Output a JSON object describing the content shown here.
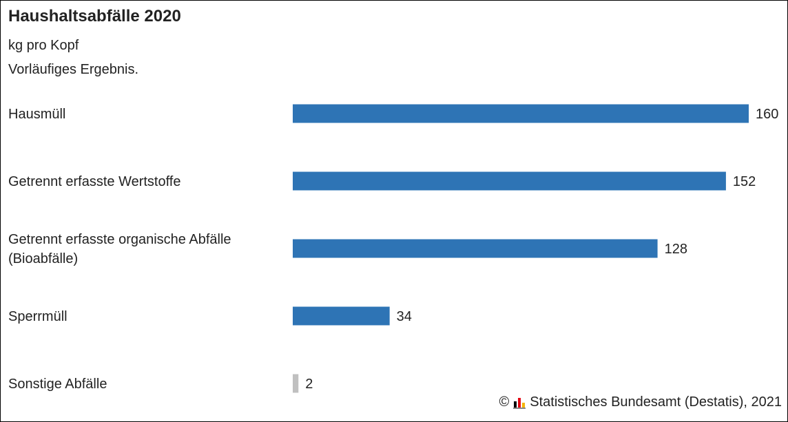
{
  "chart_data": {
    "type": "bar",
    "orientation": "horizontal",
    "title": "Haushaltsabfälle 2020",
    "subtitle": "kg pro Kopf",
    "note": "Vorläufiges Ergebnis.",
    "categories": [
      [
        "Hausmüll"
      ],
      [
        "Getrennt erfasste Wertstoffe"
      ],
      [
        "Getrennt erfasste organische Abfälle",
        "(Bioabfälle)"
      ],
      [
        "Sperrmüll"
      ],
      [
        "Sonstige Abfälle"
      ]
    ],
    "values": [
      160,
      152,
      128,
      34,
      2
    ],
    "value_labels": [
      "160",
      "152",
      "128",
      "34",
      "2"
    ],
    "bar_colors": [
      "#2e74b5",
      "#2e74b5",
      "#2e74b5",
      "#2e74b5",
      "#c0c0c0"
    ],
    "xlim": [
      0,
      160
    ],
    "grid": false,
    "legend": "none"
  },
  "footer": {
    "copyright": "©",
    "source": "Statistisches Bundesamt (Destatis), 2021"
  }
}
